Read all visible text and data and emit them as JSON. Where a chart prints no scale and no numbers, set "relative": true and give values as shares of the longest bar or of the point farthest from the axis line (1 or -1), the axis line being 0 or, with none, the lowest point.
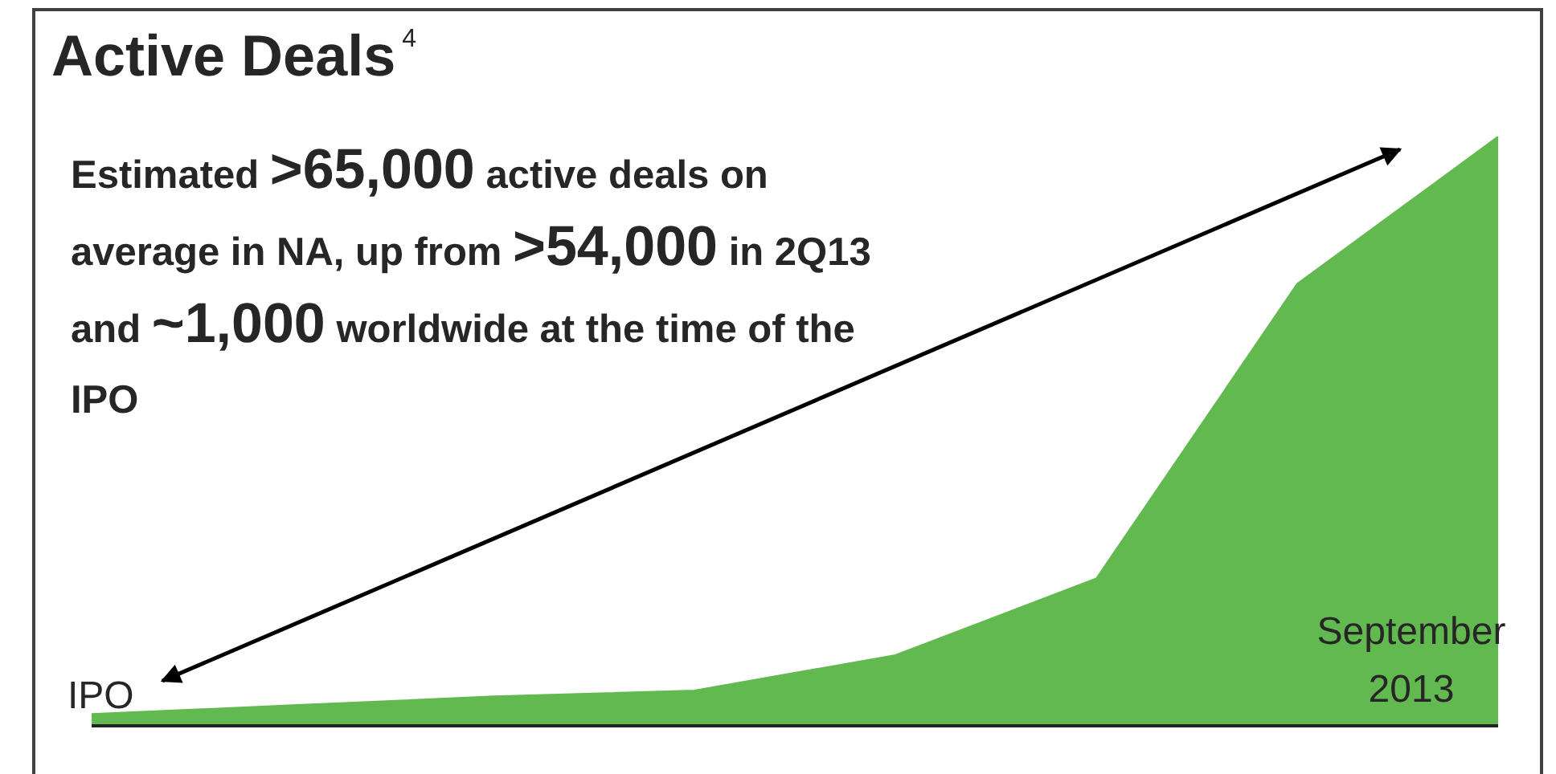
{
  "chart_data": {
    "type": "area",
    "title": "Active Deals$^{4}$",
    "subtitle": "Estimated >65,000 active deals on average in NA, up from >54,000 in 2Q13 and ~1,000 worldwide at the time of the IPO",
    "relative": true,
    "categories": [
      null,
      null,
      null,
      null,
      null,
      null,
      null,
      null
    ],
    "grid": false,
    "legend": false,
    "series": [
      {
        "color": "#62b94f",
        "values": [
          0.02,
          0.035,
          0.05,
          0.06,
          0.12,
          0.25,
          0.75,
          1
        ]
      }
    ],
    "annotations": [
      "IPO",
      "September 2013"
    ]
  }
}
